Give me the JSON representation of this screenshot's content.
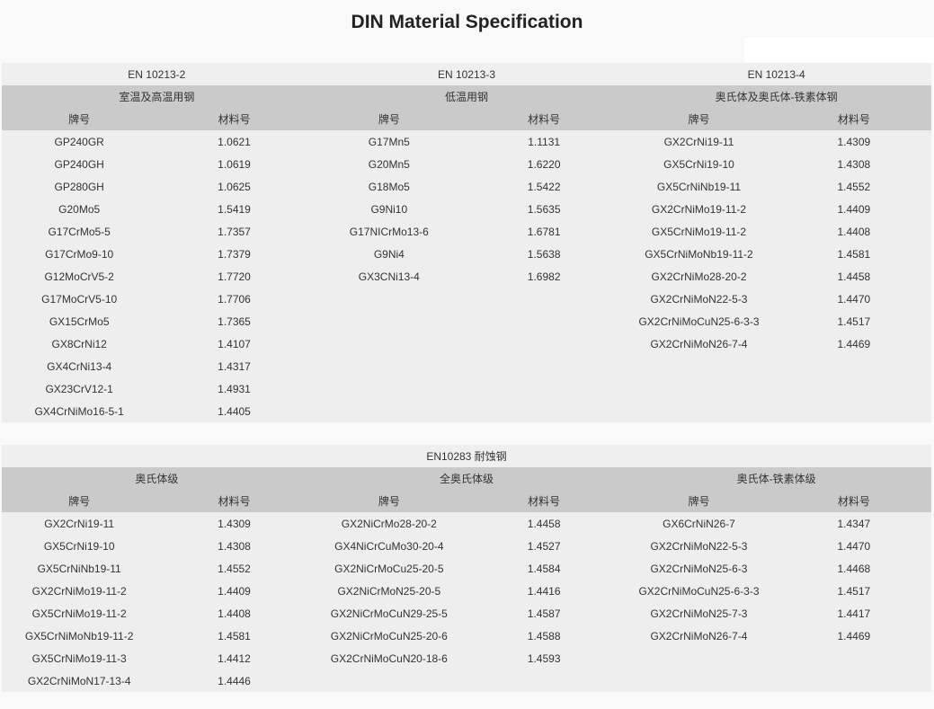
{
  "title": "DIN Material Specification",
  "tables": [
    {
      "standards": [
        "EN 10213-2",
        "EN 10213-3",
        "EN 10213-4"
      ],
      "groups": [
        "室温及高温用钢",
        "低温用钢",
        "奥氏体及奥氏体-铁素体钢"
      ],
      "col_headers": [
        "牌号",
        "材料号",
        "牌号",
        "材料号",
        "牌号",
        "材料号"
      ],
      "columns": [
        [
          [
            "GP240GR",
            "1.0621"
          ],
          [
            "GP240GH",
            "1.0619"
          ],
          [
            "GP280GH",
            "1.0625"
          ],
          [
            "G20Mo5",
            "1.5419"
          ],
          [
            "G17CrMo5-5",
            "1.7357"
          ],
          [
            "G17CrMo9-10",
            "1.7379"
          ],
          [
            "G12MoCrV5-2",
            "1.7720"
          ],
          [
            "G17MoCrV5-10",
            "1.7706"
          ],
          [
            "GX15CrMo5",
            "1.7365"
          ],
          [
            "GX8CrNi12",
            "1.4107"
          ],
          [
            "GX4CrNi13-4",
            "1.4317"
          ],
          [
            "GX23CrV12-1",
            "1.4931"
          ],
          [
            "GX4CrNiMo16-5-1",
            "1.4405"
          ]
        ],
        [
          [
            "G17Mn5",
            "1.1131"
          ],
          [
            "G20Mn5",
            "1.6220"
          ],
          [
            "G18Mo5",
            "1.5422"
          ],
          [
            "G9Ni10",
            "1.5635"
          ],
          [
            "G17NICrMo13-6",
            "1.6781"
          ],
          [
            "G9Ni4",
            "1.5638"
          ],
          [
            "GX3CNi13-4",
            "1.6982"
          ]
        ],
        [
          [
            "GX2CrNi19-11",
            "1.4309"
          ],
          [
            "GX5CrNi19-10",
            "1.4308"
          ],
          [
            "GX5CrNiNb19-11",
            "1.4552"
          ],
          [
            "GX2CrNiMo19-11-2",
            "1.4409"
          ],
          [
            "GX5CrNiMo19-11-2",
            "1.4408"
          ],
          [
            "GX5CrNiMoNb19-11-2",
            "1.4581"
          ],
          [
            "GX2CrNiMo28-20-2",
            "1.4458"
          ],
          [
            "GX2CrNiMoN22-5-3",
            "1.4470"
          ],
          [
            "GX2CrNiMoCuN25-6-3-3",
            "1.4517"
          ],
          [
            "GX2CrNiMoN26-7-4",
            "1.4469"
          ]
        ]
      ]
    },
    {
      "standards": [
        "EN10283  耐蚀钢"
      ],
      "groups": [
        "奥氏体级",
        "全奥氏体级",
        "奥氏体-铁素体级"
      ],
      "col_headers": [
        "牌号",
        "材料号",
        "牌号",
        "材料号",
        "牌号",
        "材料号"
      ],
      "columns": [
        [
          [
            "GX2CrNi19-11",
            "1.4309"
          ],
          [
            "GX5CrNi19-10",
            "1.4308"
          ],
          [
            "GX5CrNiNb19-11",
            "1.4552"
          ],
          [
            "GX2CrNiMo19-11-2",
            "1.4409"
          ],
          [
            "GX5CrNiMo19-11-2",
            "1.4408"
          ],
          [
            "GX5CrNiMoNb19-11-2",
            "1.4581"
          ],
          [
            "GX5CrNiMo19-11-3",
            "1.4412"
          ],
          [
            "GX2CrNiMoN17-13-4",
            "1.4446"
          ]
        ],
        [
          [
            "GX2NiCrMo28-20-2",
            "1.4458"
          ],
          [
            "GX4NiCrCuMo30-20-4",
            "1.4527"
          ],
          [
            "GX2NiCrMoCu25-20-5",
            "1.4584"
          ],
          [
            "GX2NiCrMoN25-20-5",
            "1.4416"
          ],
          [
            "GX2NiCrMoCuN29-25-5",
            "1.4587"
          ],
          [
            "GX2NiCrMoCuN25-20-6",
            "1.4588"
          ],
          [
            "GX2CrNiMoCuN20-18-6",
            "1.4593"
          ]
        ],
        [
          [
            "GX6CrNiN26-7",
            "1.4347"
          ],
          [
            "GX2CrNiMoN22-5-3",
            "1.4470"
          ],
          [
            "GX2CrNiMoN25-6-3",
            "1.4468"
          ],
          [
            "GX2CrNiMoCuN25-6-3-3",
            "1.4517"
          ],
          [
            "GX2CrNiMoN25-7-3",
            "1.4417"
          ],
          [
            "GX2CrNiMoN26-7-4",
            "1.4469"
          ]
        ]
      ]
    }
  ]
}
